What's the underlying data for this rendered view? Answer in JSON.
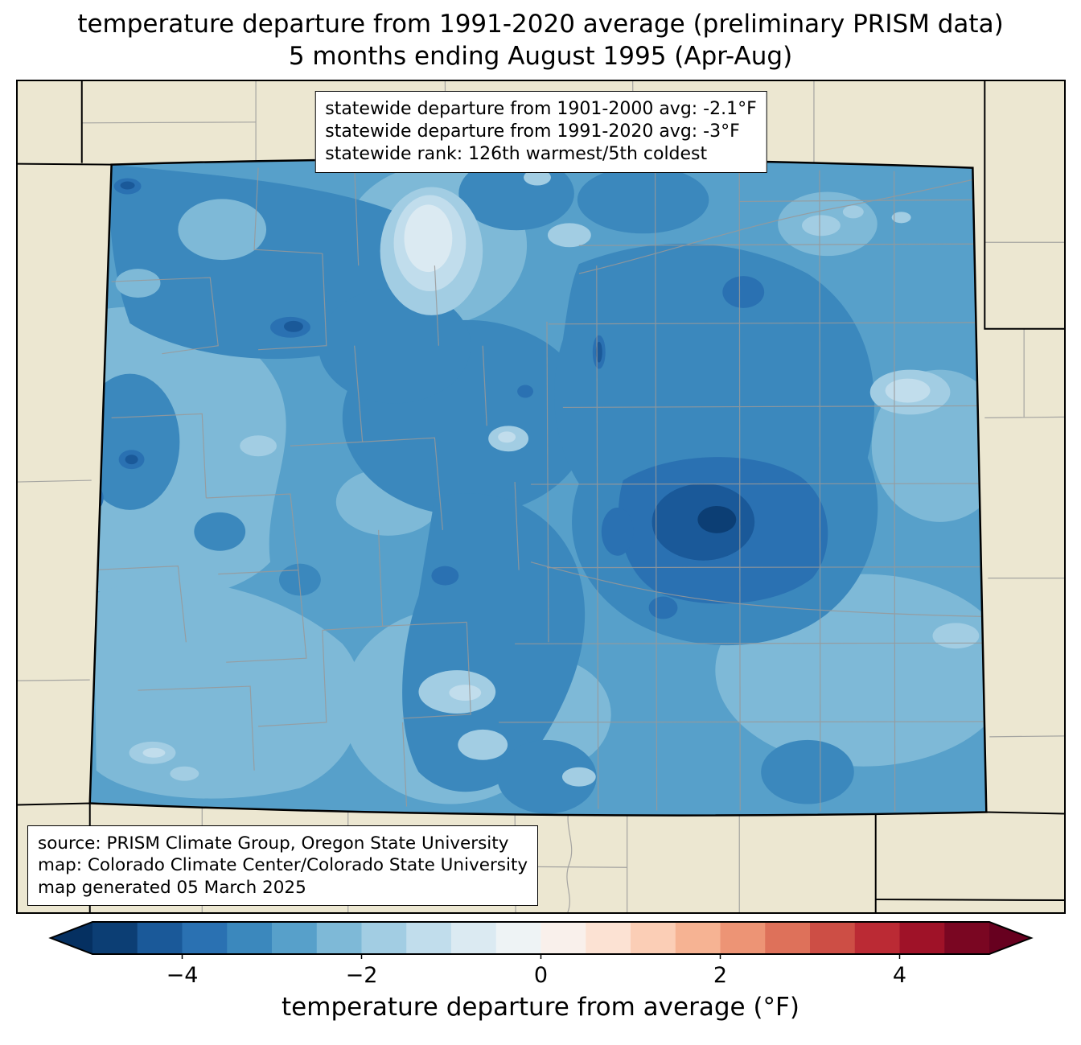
{
  "title": {
    "line1": "temperature departure from 1991-2020 average (preliminary PRISM data)",
    "line2": "5 months ending August 1995 (Apr-Aug)"
  },
  "stats_box": {
    "lines": [
      "statewide departure from 1901-2000 avg: -2.1°F",
      "statewide departure from 1991-2020 avg: -3°F",
      "statewide rank: 126th warmest/5th coldest"
    ]
  },
  "source_box": {
    "lines": [
      "source: PRISM Climate Group, Oregon State University",
      "map: Colorado Climate Center/Colorado State University",
      "map generated 05 March 2025"
    ]
  },
  "colorbar": {
    "label": "temperature departure from average (°F)",
    "min": -5,
    "max": 5,
    "ticks": [
      {
        "value": -4,
        "label": "−4"
      },
      {
        "value": -2,
        "label": "−2"
      },
      {
        "value": 0,
        "label": "0"
      },
      {
        "value": 2,
        "label": "2"
      },
      {
        "value": 4,
        "label": "4"
      }
    ],
    "under_color": "#053061",
    "over_color": "#67001f",
    "segment_colors": [
      "#0c3e74",
      "#1a5999",
      "#2a71b2",
      "#3b88bd",
      "#57a0ca",
      "#7eb9d7",
      "#a2cde3",
      "#c1ddec",
      "#dbeaf2",
      "#eef3f5",
      "#f9f0eb",
      "#fce2d3",
      "#fbceb6",
      "#f6b393",
      "#ed9475",
      "#de715a",
      "#cd4e45",
      "#bb2a34",
      "#9f1228",
      "#7a0622"
    ]
  },
  "palette": {
    "land": "#ece7d1",
    "county_line": "#999999",
    "state_line": "#000000",
    "level1": "#0c3e74",
    "level2": "#1a5999",
    "level3": "#2a71b2",
    "level4": "#3b88bd",
    "level5": "#57a0ca",
    "level6": "#7eb9d7",
    "level7": "#a2cde3",
    "level8": "#c1ddec",
    "level9": "#dbeaf2"
  }
}
